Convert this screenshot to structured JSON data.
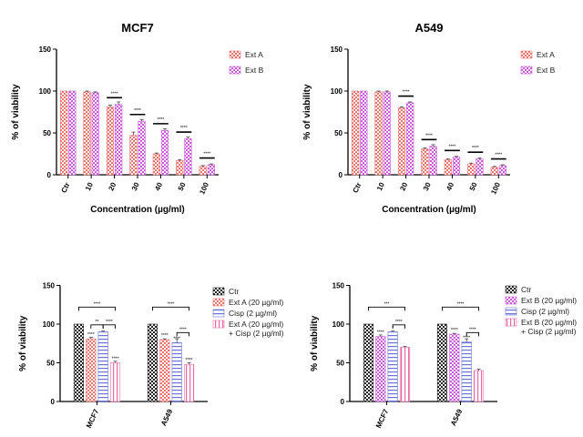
{
  "chart_data": [
    {
      "type": "bar",
      "title": "MCF7",
      "xlabel": "Concentration (µg/ml)",
      "ylabel": "% of viability",
      "ylim": [
        0,
        150
      ],
      "yticks": [
        "0",
        "50",
        "100",
        "150"
      ],
      "categories": [
        "Ctr",
        "10",
        "20",
        "30",
        "40",
        "50",
        "100"
      ],
      "series": [
        {
          "name": "Ext A",
          "values": [
            100,
            99,
            81,
            47,
            25,
            17,
            10
          ],
          "errors": [
            0,
            1,
            2,
            4,
            1,
            1,
            1
          ],
          "color": "#e8736f",
          "pattern": "checker"
        },
        {
          "name": "Ext B",
          "values": [
            100,
            98,
            84,
            64,
            53,
            43,
            12
          ],
          "errors": [
            0,
            1,
            3,
            2,
            2,
            2,
            1
          ],
          "color": "#c95bd8",
          "pattern": "checker"
        }
      ],
      "significance": [
        "",
        "",
        "****",
        "****",
        "****",
        "****",
        "****"
      ],
      "legend": "top-right"
    },
    {
      "type": "bar",
      "title": "A549",
      "xlabel": "Concentration (µg/ml)",
      "ylabel": "% of viability",
      "ylim": [
        0,
        150
      ],
      "yticks": [
        "0",
        "50",
        "100",
        "150"
      ],
      "categories": [
        "Ctr",
        "10",
        "20",
        "30",
        "40",
        "50",
        "100"
      ],
      "series": [
        {
          "name": "Ext A",
          "values": [
            100,
            99,
            80,
            31,
            18,
            13,
            9
          ],
          "errors": [
            0,
            1,
            1,
            1,
            1,
            1,
            1
          ],
          "color": "#e8736f",
          "pattern": "checker"
        },
        {
          "name": "Ext B",
          "values": [
            100,
            99,
            86,
            34,
            21,
            19,
            11
          ],
          "errors": [
            0,
            1,
            1,
            2,
            1,
            1,
            1
          ],
          "color": "#c95bd8",
          "pattern": "checker"
        }
      ],
      "significance": [
        "",
        "",
        "****",
        "****",
        "****",
        "****",
        "****"
      ],
      "legend": "top-right"
    },
    {
      "type": "bar",
      "title": "",
      "xlabel": "",
      "ylabel": "% of viability",
      "ylim": [
        0,
        150
      ],
      "yticks": [
        "0",
        "50",
        "100",
        "150"
      ],
      "categories": [
        "MCF7",
        "A549"
      ],
      "series": [
        {
          "name": "Ctr",
          "values": [
            100,
            100
          ],
          "errors": [
            0,
            0
          ],
          "color": "#222222",
          "pattern": "checker"
        },
        {
          "name": "Ext A (20 µg/ml)",
          "values": [
            81,
            80
          ],
          "errors": [
            2,
            1
          ],
          "color": "#e8736f",
          "pattern": "checker"
        },
        {
          "name": "Cisp (2 µg/ml)",
          "values": [
            90,
            76
          ],
          "errors": [
            1,
            5
          ],
          "color": "#6a74d8",
          "pattern": "hlines"
        },
        {
          "name": "Ext A (20 µg/ml) + Cisp (2 µg/ml)",
          "values": [
            50,
            48
          ],
          "errors": [
            2,
            2
          ],
          "color": "#e86aa5",
          "pattern": "vlines"
        }
      ],
      "bar_sig": [
        [
          "",
          "****",
          "",
          "****"
        ],
        [
          "",
          "****",
          "****",
          "****"
        ]
      ],
      "brackets": [
        {
          "group": 0,
          "from": 0,
          "to": 3,
          "label": "****"
        },
        {
          "group": 0,
          "from": 1,
          "to": 2,
          "label": "**"
        },
        {
          "group": 0,
          "from": 2,
          "to": 3,
          "label": "****"
        },
        {
          "group": 1,
          "from": 0,
          "to": 3,
          "label": "****"
        },
        {
          "group": 1,
          "from": 2,
          "to": 3,
          "label": "****"
        }
      ],
      "legend": "right"
    },
    {
      "type": "bar",
      "title": "",
      "xlabel": "",
      "ylabel": "% of viability",
      "ylim": [
        0,
        150
      ],
      "yticks": [
        "0",
        "50",
        "100",
        "150"
      ],
      "categories": [
        "MCF7",
        "A549"
      ],
      "series": [
        {
          "name": "Ctr",
          "values": [
            100,
            100
          ],
          "errors": [
            0,
            0
          ],
          "color": "#222222",
          "pattern": "checker"
        },
        {
          "name": "Ext B (20 µg/ml)",
          "values": [
            84,
            87
          ],
          "errors": [
            2,
            1
          ],
          "color": "#c95bd8",
          "pattern": "checker"
        },
        {
          "name": "Cisp (2 µg/ml)",
          "values": [
            90,
            77
          ],
          "errors": [
            1,
            4
          ],
          "color": "#6a74d8",
          "pattern": "hlines"
        },
        {
          "name": "Ext B (20 µg/ml) + Cisp (2 µg/ml)",
          "values": [
            70,
            40
          ],
          "errors": [
            1,
            2
          ],
          "color": "#e86aa5",
          "pattern": "vlines"
        }
      ],
      "bar_sig": [
        [
          "",
          "****",
          "*",
          ""
        ],
        [
          "",
          "****",
          "****",
          ""
        ]
      ],
      "brackets": [
        {
          "group": 0,
          "from": 0,
          "to": 3,
          "label": "***"
        },
        {
          "group": 0,
          "from": 2,
          "to": 3,
          "label": "****"
        },
        {
          "group": 1,
          "from": 0,
          "to": 3,
          "label": "****"
        },
        {
          "group": 1,
          "from": 2,
          "to": 3,
          "label": "****"
        }
      ],
      "legend": "right"
    }
  ]
}
